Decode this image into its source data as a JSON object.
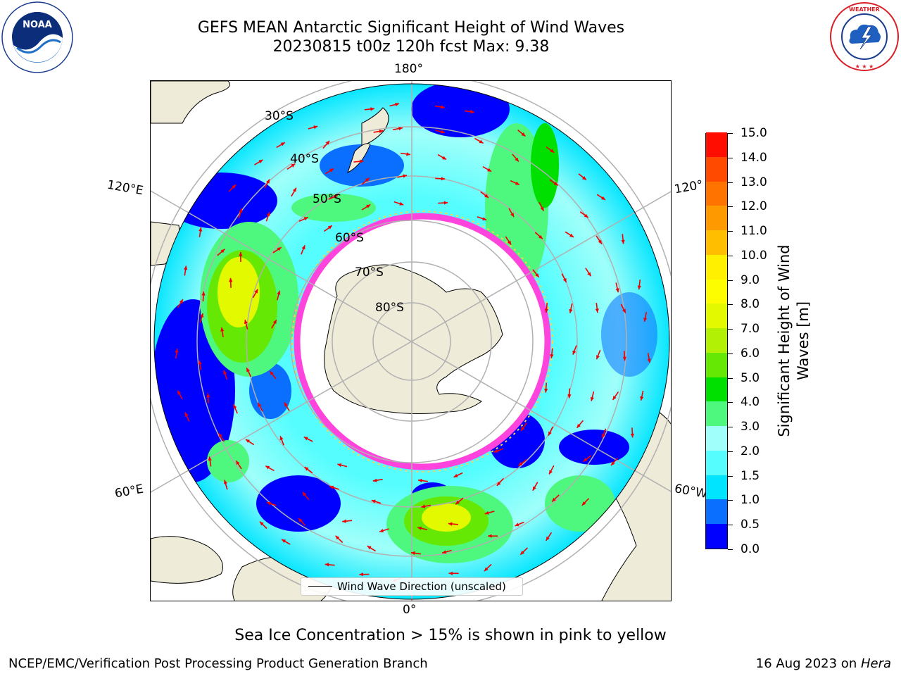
{
  "title": {
    "line1": "GEFS MEAN Antarctic Significant Height of Wind Waves",
    "line2": "20230815 t00z 120h fcst   Max: 9.38"
  },
  "logos": {
    "left": {
      "icon": "noaa-logo",
      "text": "NOAA"
    },
    "right": {
      "icon": "nws-logo",
      "text": "NATIONAL WEATHER SERVICE"
    }
  },
  "map": {
    "projection": "south-polar-stereographic",
    "longitude_labels": {
      "top": "180°",
      "bottom": "0°",
      "upper_left": "120°E",
      "lower_left": "60°E",
      "upper_right": "120°",
      "lower_right": "60°W"
    },
    "latitude_labels": [
      "30°S",
      "40°S",
      "50°S",
      "60°S",
      "70°S",
      "80°S"
    ],
    "legend": {
      "label": "Wind Wave Direction (unscaled)"
    },
    "colors": {
      "land": "#efebd9",
      "sea_ice_pink": "#ff44dd",
      "sea_ice_yellow": "#ffd24a",
      "arrow": "#ee0000",
      "gridline": "#b0b0b0"
    }
  },
  "colorbar": {
    "title": "Significant Height of Wind Waves [m]",
    "title_line1": "Significant Height of Wind",
    "title_line2": "Waves [m]",
    "tick_labels": [
      "0.0",
      "0.5",
      "1.0",
      "1.5",
      "2.0",
      "3.0",
      "4.0",
      "5.0",
      "6.0",
      "7.0",
      "8.0",
      "9.0",
      "10.0",
      "11.0",
      "12.0",
      "13.0",
      "14.0",
      "15.0"
    ],
    "colors": [
      "#0000ff",
      "#0a6eff",
      "#00e4ff",
      "#55fdff",
      "#a0fffa",
      "#4ef87e",
      "#00e000",
      "#66e805",
      "#b2f006",
      "#e2f900",
      "#fdfd00",
      "#fff000",
      "#ffbe00",
      "#ff9900",
      "#ff7300",
      "#ff4a00",
      "#ff0d00"
    ]
  },
  "caption": "Sea Ice Concentration > 15% is shown in pink to yellow",
  "footer": {
    "left": "NCEP/EMC/Verification Post Processing Product Generation Branch",
    "right_date": "16 Aug 2023 on ",
    "right_machine": "Hera"
  }
}
